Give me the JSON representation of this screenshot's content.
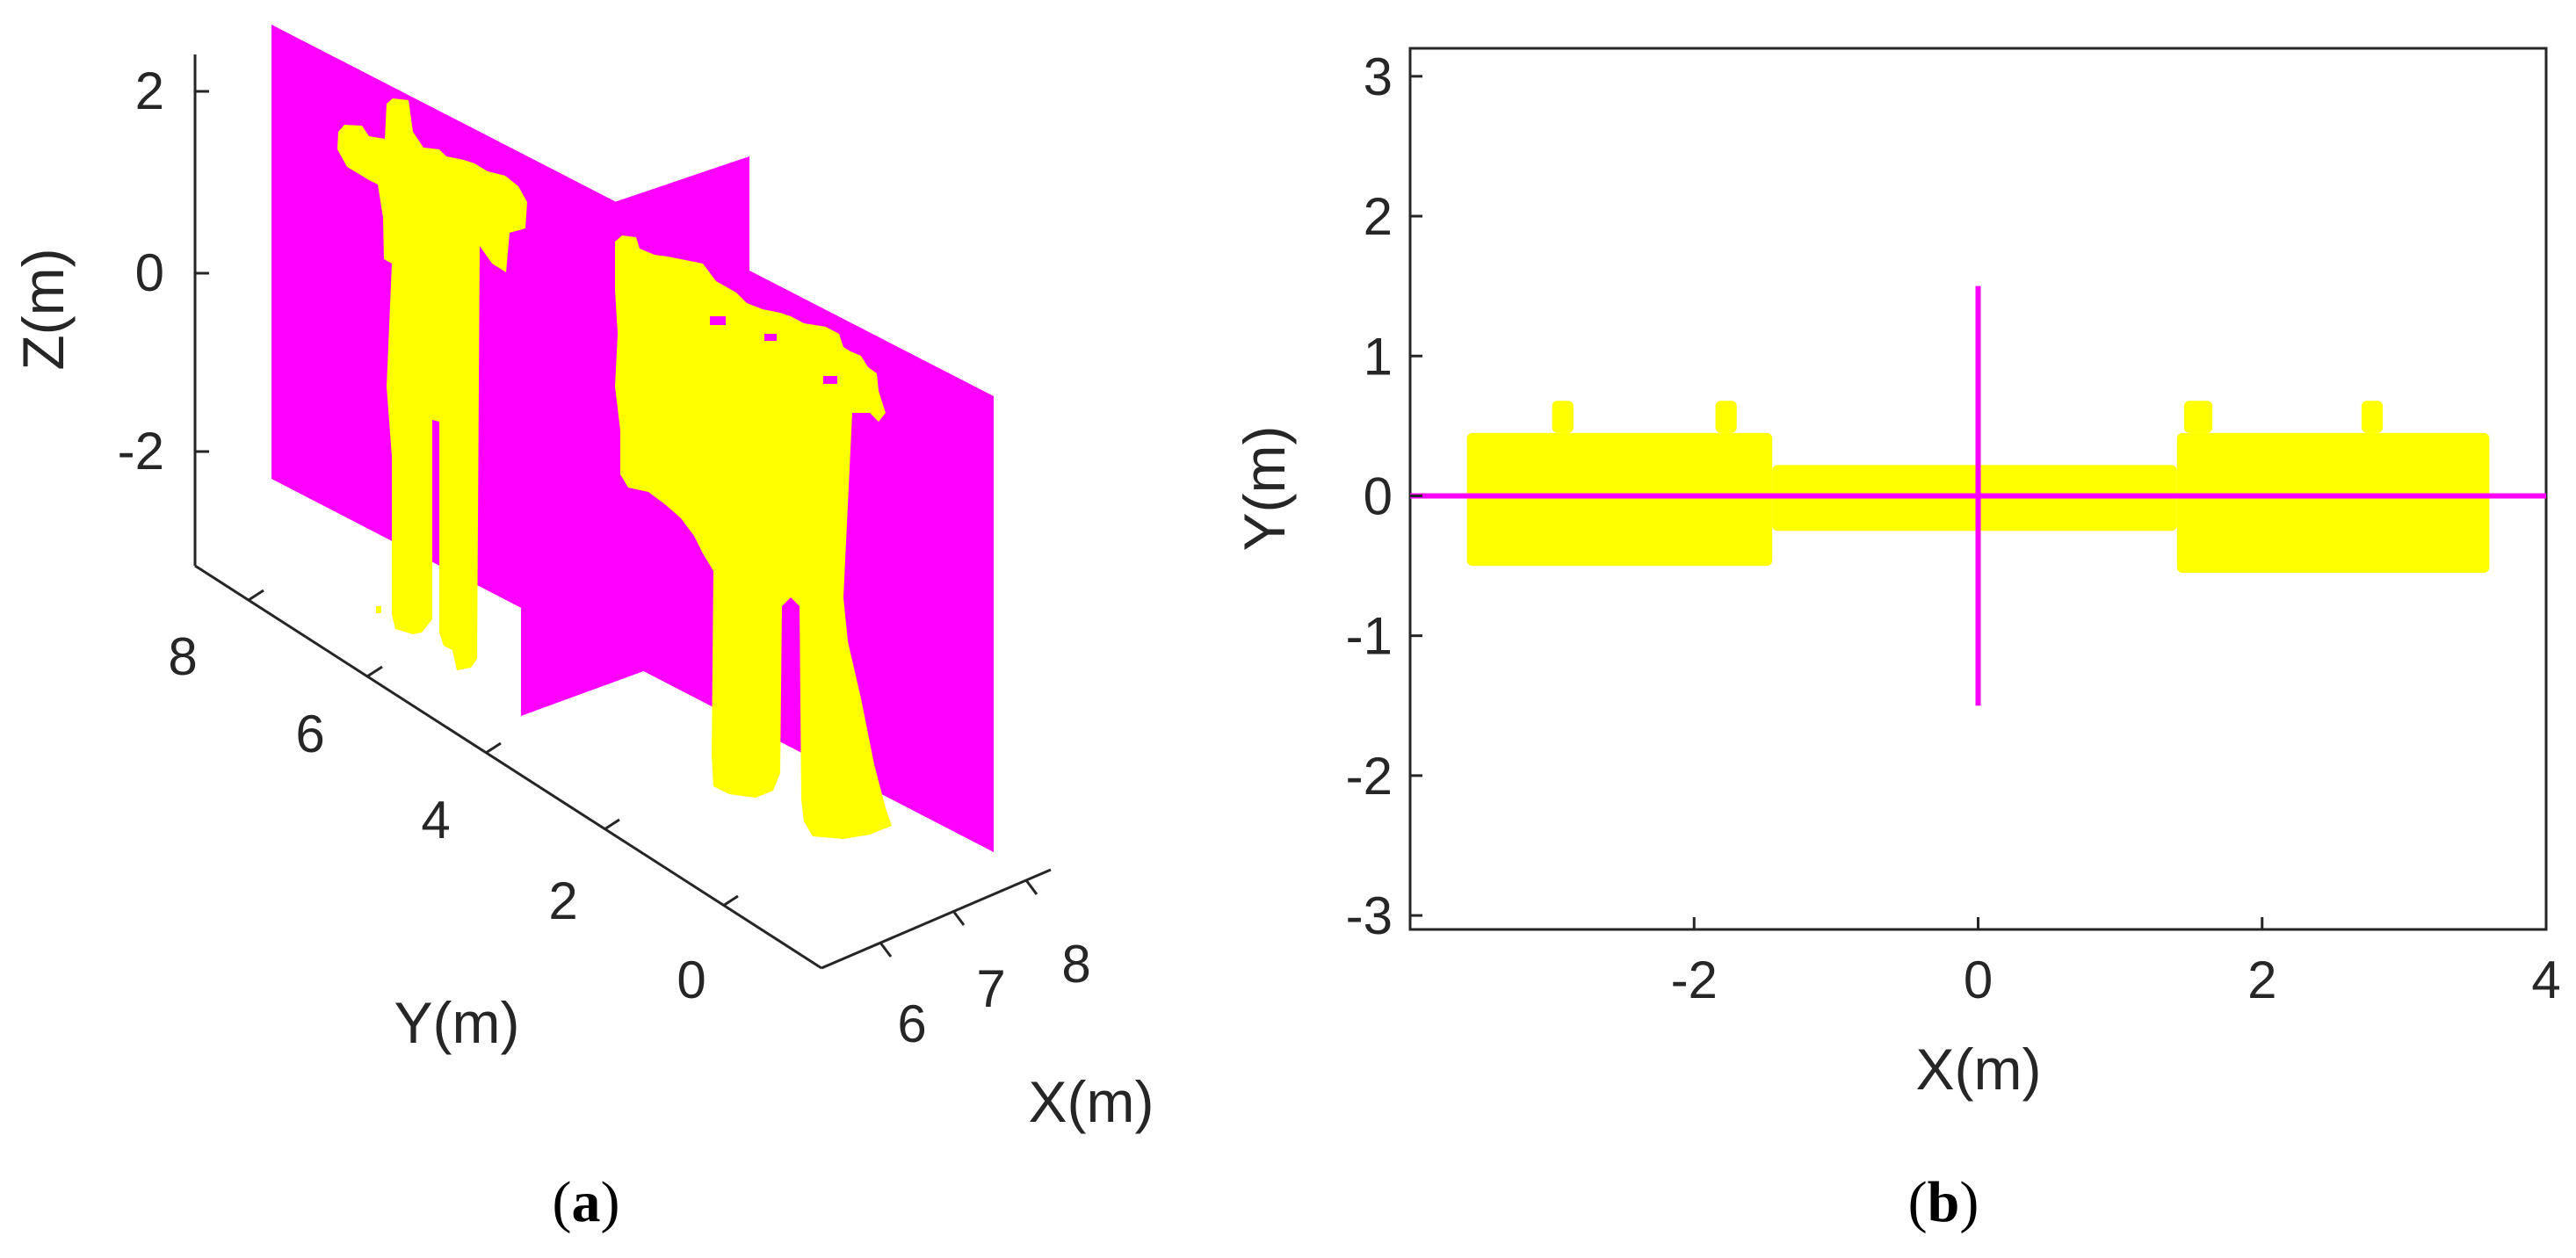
{
  "chart_data": [
    {
      "panel": "a",
      "caption_letter": "a",
      "type": "scatter",
      "projection": "3d",
      "xlabel": "X(m)",
      "ylabel": "Y(m)",
      "zlabel": "Z(m)",
      "x_ticks": [
        "6",
        "7",
        "8"
      ],
      "y_ticks": [
        "0",
        "2",
        "4",
        "6",
        "8"
      ],
      "z_ticks": [
        "2",
        "0",
        "-2"
      ],
      "xlim": [
        5.6,
        8.4
      ],
      "ylim": [
        -1,
        9
      ],
      "zlim": [
        -3.2,
        2.5
      ],
      "grid": false,
      "point_color": "#ffff00",
      "plane_color": "#ff00ff",
      "series": [
        {
          "kind": "point-cloud",
          "color": "#ffff00"
        },
        {
          "kind": "plane",
          "color": "#ff00ff"
        },
        {
          "kind": "plane",
          "color": "#ff00ff"
        }
      ]
    },
    {
      "panel": "b",
      "caption_letter": "b",
      "type": "scatter",
      "xlabel": "X(m)",
      "ylabel": "Y(m)",
      "x_ticks": [
        "-2",
        "0",
        "2",
        "4"
      ],
      "y_ticks": [
        "3",
        "2",
        "1",
        "0",
        "-1",
        "-2",
        "-3"
      ],
      "xlim": [
        -4,
        4
      ],
      "ylim": [
        -3.1,
        3.2
      ],
      "grid": false,
      "point_color": "#ffff00",
      "line_color": "#ff00ff",
      "point_cloud": {
        "left_block": {
          "x": [
            -3.6,
            -1.45
          ],
          "y": [
            -0.5,
            0.45
          ]
        },
        "center_bridge": {
          "x": [
            -1.45,
            1.4
          ],
          "y": [
            -0.25,
            0.22
          ]
        },
        "right_block": {
          "x": [
            1.4,
            3.6
          ],
          "y": [
            -0.55,
            0.45
          ]
        },
        "tabs": [
          {
            "x": [
              -3.0,
              -2.85
            ],
            "y": [
              0.45,
              0.68
            ]
          },
          {
            "x": [
              -1.85,
              -1.7
            ],
            "y": [
              0.45,
              0.68
            ]
          },
          {
            "x": [
              1.45,
              1.65
            ],
            "y": [
              0.45,
              0.68
            ]
          },
          {
            "x": [
              2.7,
              2.85
            ],
            "y": [
              0.45,
              0.68
            ]
          }
        ]
      },
      "lines": [
        {
          "x": [
            -4,
            4
          ],
          "y": [
            0,
            0
          ]
        },
        {
          "x": [
            0,
            0
          ],
          "y": [
            -1.5,
            1.5
          ]
        }
      ]
    }
  ]
}
